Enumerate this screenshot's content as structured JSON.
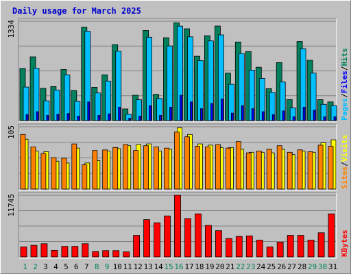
{
  "chart_data": {
    "type": "bar",
    "title": "Daily usage for March 2025",
    "categories": [
      "1",
      "2",
      "3",
      "4",
      "5",
      "6",
      "7",
      "8",
      "9",
      "10",
      "11",
      "12",
      "13",
      "14",
      "15",
      "16",
      "17",
      "18",
      "19",
      "20",
      "21",
      "22",
      "23",
      "24",
      "25",
      "26",
      "27",
      "28",
      "29",
      "30",
      "31"
    ],
    "weekend_days": [
      "1",
      "2",
      "8",
      "9",
      "15",
      "16",
      "22",
      "23",
      "29",
      "30"
    ],
    "panels": [
      {
        "id": "top",
        "ymax_label": "1334",
        "ymax": 1334,
        "legend": [
          {
            "label": "Pages",
            "color": "#00c0ff"
          },
          {
            "label": "/",
            "color": "#000000"
          },
          {
            "label": "Files",
            "color": "#0000ff"
          },
          {
            "label": "/",
            "color": "#000000"
          },
          {
            "label": "Hits",
            "color": "#00805c"
          }
        ],
        "series": [
          {
            "name": "Hits",
            "color": "#00805c",
            "values": [
              700,
              856,
              432,
              456,
              685,
              403,
              1255,
              447,
              615,
              1020,
              156,
              340,
              1210,
              352,
              1112,
              1314,
              1233,
              864,
              1140,
              1270,
              638,
              1055,
              927,
              716,
              428,
              778,
              282,
              1062,
              810,
              281,
              250
            ]
          },
          {
            "name": "Files",
            "color": "#00c0ff",
            "values": [
              450,
              704,
              265,
              410,
              615,
              258,
              1200,
              371,
              531,
              932,
              85,
              280,
              1120,
              296,
              1002,
              1268,
              1124,
              806,
              1070,
              1150,
              487,
              900,
              677,
              567,
              378,
              518,
              170,
              966,
              638,
              218,
              200
            ]
          },
          {
            "name": "Pages",
            "color": "#0000ff",
            "values": [
              80,
              120,
              70,
              85,
              95,
              60,
              250,
              70,
              90,
              180,
              30,
              60,
              200,
              70,
              180,
              340,
              250,
              160,
              230,
              290,
              100,
              200,
              160,
              120,
              80,
              130,
              50,
              180,
              140,
              50,
              50
            ]
          }
        ]
      },
      {
        "id": "middle",
        "ymax_label": "105",
        "ymax": 105,
        "legend": [
          {
            "label": "Sites",
            "color": "#ff8000"
          },
          {
            "label": "/",
            "color": "#000000"
          },
          {
            "label": "Visits",
            "color": "#ffff00"
          }
        ],
        "series": [
          {
            "name": "Visits",
            "color": "#ffff00",
            "values": [
              84,
              64,
              63,
              47,
              44,
              69,
              44,
              48,
              64,
              68,
              73,
              75,
              76,
              64,
              67,
              103,
              92,
              76,
              74,
              70,
              70,
              67,
              62,
              62,
              61,
              67,
              58,
              64,
              62,
              78,
              83
            ]
          },
          {
            "name": "Sites",
            "color": "#ff8000",
            "values": [
              92,
              71,
              60,
              53,
              52,
              76,
              41,
              65,
              66,
              70,
              75,
              65,
              73,
              71,
              69,
              96,
              88,
              72,
              71,
              75,
              69,
              80,
              61,
              64,
              67,
              73,
              62,
              66,
              63,
              74,
              72
            ]
          }
        ]
      },
      {
        "id": "bottom",
        "ymax_label": "11745",
        "ymax": 11745,
        "legend": [
          {
            "label": "KBytes",
            "color": "#ff0000"
          }
        ],
        "series": [
          {
            "name": "KBytes",
            "color": "#ff0000",
            "values": [
              1900,
              2200,
              2500,
              1250,
              2000,
              2000,
              2500,
              1000,
              1200,
              1200,
              950,
              4100,
              7100,
              6500,
              7800,
              11745,
              7300,
              8200,
              6000,
              5000,
              3500,
              3900,
              4000,
              3200,
              1900,
              2800,
              4100,
              4100,
              3200,
              4600,
              8200
            ]
          }
        ]
      }
    ]
  }
}
